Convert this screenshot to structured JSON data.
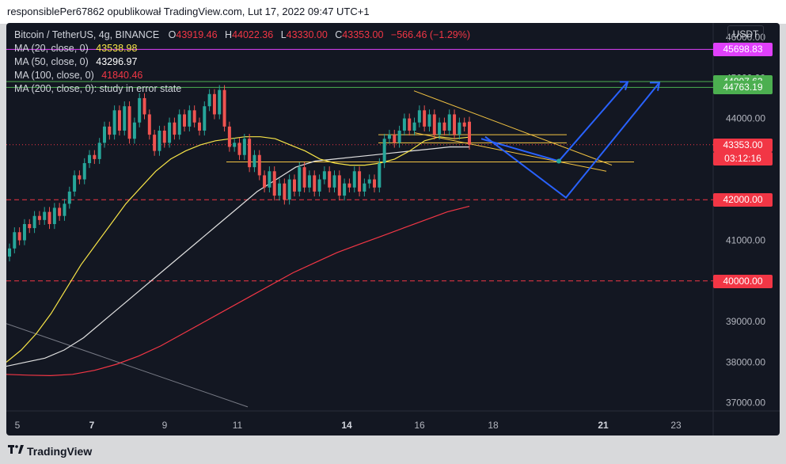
{
  "header": {
    "title": "responsiblePer67862 opublikował TradingView.com, Lut 17, 2022 09:47 UTC+1"
  },
  "footer": {
    "brand": "TradingView",
    "logo": "tradingview-logo"
  },
  "chart_data": {
    "type": "candlestick",
    "symbol": "Bitcoin / TetherUS, 4g, BINANCE",
    "ohlc_label": {
      "o_tag": "O",
      "o": "43919.46",
      "h_tag": "H",
      "h": "44022.36",
      "l_tag": "L",
      "l": "43330.00",
      "c_tag": "C",
      "c": "43353.00",
      "change": "−566.46 (−1.29%)"
    },
    "indicators": [
      {
        "label": "MA (20, close, 0)",
        "value": "43538.98",
        "color": "#f7e447"
      },
      {
        "label": "MA (50, close, 0)",
        "value": "43296.97",
        "color": "#ffffff"
      },
      {
        "label": "MA (100, close, 0)",
        "value": "41840.46",
        "color": "#f23645"
      },
      {
        "label": "MA (200, close, 0): study in error state",
        "value": "",
        "color": "#d1d4dc"
      }
    ],
    "unit": "USDT",
    "y_ticks": [
      37000,
      38000,
      39000,
      40000,
      41000,
      42000,
      43000,
      44000,
      45000,
      46000
    ],
    "y_tick_labels": [
      "37000.00",
      "38000.00",
      "39000.00",
      "40000.00",
      "41000.00",
      "42000.00",
      "43000.00",
      "44000.00",
      "45000.00",
      "46000.00"
    ],
    "y_range": [
      36800,
      46350
    ],
    "x_labels": [
      "5",
      "7",
      "9",
      "11",
      "14",
      "16",
      "18",
      "21",
      "23"
    ],
    "x_label_bold": [
      "7",
      "14",
      "21"
    ],
    "price_tags": [
      {
        "value": 45698.83,
        "label": "45698.83",
        "bg": "#e040fb"
      },
      {
        "value": 44907.63,
        "label": "44907.63",
        "bg": "#4caf50"
      },
      {
        "value": 44763.19,
        "label": "44763.19",
        "bg": "#4caf50"
      },
      {
        "value": 43353.0,
        "label": "43353.00",
        "bg": "#f23645",
        "sub": "03:12:16"
      },
      {
        "value": 42000.0,
        "label": "42000.00",
        "bg": "#f23645"
      },
      {
        "value": 40000.0,
        "label": "40000.00",
        "bg": "#f23645"
      }
    ],
    "levels": [
      {
        "value": 45698.83,
        "color": "#e040fb",
        "style": "solid"
      },
      {
        "value": 44907.63,
        "color": "#4caf50",
        "style": "solid"
      },
      {
        "value": 44763.19,
        "color": "#4caf50",
        "style": "solid"
      },
      {
        "value": 43353.0,
        "color": "#f23645",
        "style": "dotted"
      },
      {
        "value": 42000.0,
        "color": "#f23645",
        "style": "dashed"
      },
      {
        "value": 40000.0,
        "color": "#f23645",
        "style": "dashed"
      }
    ],
    "candles_close": [
      40800,
      41200,
      41000,
      41400,
      41300,
      41600,
      41500,
      41700,
      41400,
      41800,
      41600,
      41900,
      42200,
      42600,
      42500,
      42900,
      43100,
      43000,
      43400,
      43800,
      43600,
      44200,
      43700,
      44300,
      43500,
      43900,
      44500,
      44100,
      43600,
      43200,
      43700,
      43400,
      43900,
      43600,
      44100,
      43800,
      44200,
      43900,
      43700,
      44300,
      44600,
      44100,
      44700,
      43800,
      43300,
      43400,
      43100,
      43500,
      42800,
      43100,
      42600,
      42300,
      42700,
      42100,
      42400,
      42000,
      42500,
      42200,
      42800,
      42300,
      42600,
      42200,
      42500,
      42700,
      42300,
      42600,
      42100,
      42400,
      42300,
      42700,
      42200,
      42400,
      42500,
      42300,
      42900,
      43500,
      43600,
      43400,
      43700,
      44000,
      43700,
      43900,
      44200,
      43800,
      44100,
      43600,
      43900,
      43700,
      44100,
      43600,
      43900,
      43800,
      43353
    ],
    "candles_open": [
      40600,
      40800,
      41200,
      41000,
      41400,
      41300,
      41600,
      41500,
      41700,
      41400,
      41800,
      41600,
      41900,
      42200,
      42600,
      42500,
      42900,
      43100,
      43000,
      43400,
      43800,
      43600,
      44200,
      43700,
      44300,
      43500,
      43900,
      44500,
      44100,
      43600,
      43200,
      43700,
      43400,
      43900,
      43600,
      44100,
      43800,
      44200,
      43900,
      43700,
      44300,
      44600,
      44100,
      44700,
      43800,
      43300,
      43400,
      43100,
      43500,
      42800,
      43100,
      42600,
      42300,
      42700,
      42100,
      42400,
      42000,
      42500,
      42200,
      42800,
      42300,
      42600,
      42200,
      42500,
      42700,
      42300,
      42600,
      42100,
      42400,
      42300,
      42700,
      42200,
      42400,
      42500,
      42300,
      42900,
      43500,
      43600,
      43400,
      43700,
      44000,
      43700,
      43900,
      44200,
      43800,
      44100,
      43600,
      43900,
      43700,
      44100,
      43600,
      43900,
      43919.46
    ],
    "ma20": [
      38000,
      38300,
      38700,
      39200,
      39800,
      40400,
      40900,
      41400,
      41900,
      42300,
      42700,
      43000,
      43200,
      43350,
      43450,
      43500,
      43550,
      43550,
      43500,
      43350,
      43200,
      43000,
      42900,
      42850,
      42850,
      42900,
      43000,
      43200,
      43450,
      43550,
      43500,
      43538.98
    ],
    "ma50": [
      37900,
      38000,
      38100,
      38300,
      38600,
      39000,
      39400,
      39800,
      40200,
      40600,
      41000,
      41400,
      41800,
      42200,
      42500,
      42800,
      42950,
      43000,
      43050,
      43100,
      43150,
      43200,
      43250,
      43300,
      43296.97
    ],
    "ma100": [
      37700,
      37680,
      37670,
      37700,
      37800,
      37950,
      38150,
      38400,
      38700,
      39000,
      39300,
      39600,
      39900,
      40200,
      40450,
      40700,
      40900,
      41100,
      41300,
      41500,
      41700,
      41840.46
    ]
  }
}
